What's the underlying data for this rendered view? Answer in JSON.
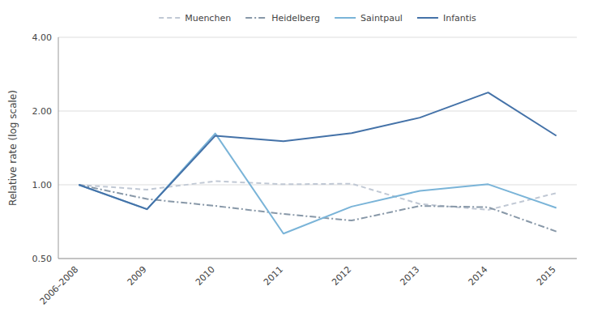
{
  "chart_data": {
    "type": "line",
    "categories": [
      "2006–2008",
      "2009",
      "2010",
      "2011",
      "2012",
      "2013",
      "2014",
      "2015"
    ],
    "series": [
      {
        "name": "Muenchen",
        "color": "#c0c8d4",
        "line_style": "dashed",
        "values": [
          1.0,
          0.955,
          1.035,
          1.005,
          1.01,
          0.835,
          0.79,
          0.925
        ]
      },
      {
        "name": "Heidelberg",
        "color": "#8898a8",
        "line_style": "dashdot",
        "values": [
          1.0,
          0.875,
          0.82,
          0.76,
          0.715,
          0.82,
          0.81,
          0.645
        ]
      },
      {
        "name": "Saintpaul",
        "color": "#7ab4d8",
        "line_style": "solid",
        "values": [
          1.0,
          0.795,
          1.62,
          0.632,
          0.815,
          0.945,
          1.005,
          0.805
        ]
      },
      {
        "name": "Infantis",
        "color": "#4472a8",
        "line_style": "solid",
        "values": [
          1.0,
          0.795,
          1.585,
          1.505,
          1.625,
          1.88,
          2.38,
          1.585
        ]
      }
    ],
    "y_label": "Relative rate (log scale)",
    "ylim": [
      0.5,
      4.0
    ],
    "yticks": [
      {
        "value": 0.5,
        "label": "0.50"
      },
      {
        "value": 1,
        "label": "1.00"
      },
      {
        "value": 2,
        "label": "2.00"
      },
      {
        "value": 4,
        "label": "4.00"
      }
    ],
    "log": "y",
    "grid": true,
    "legend": "top"
  }
}
